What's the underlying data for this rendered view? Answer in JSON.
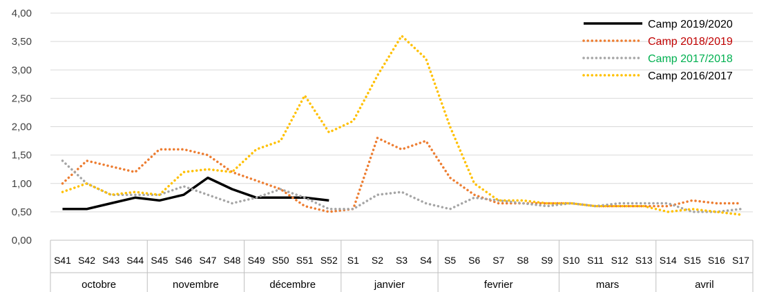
{
  "chart_data": {
    "type": "line",
    "categories": [
      "S41",
      "S42",
      "S43",
      "S44",
      "S45",
      "S46",
      "S47",
      "S48",
      "S49",
      "S50",
      "S51",
      "S52",
      "S1",
      "S2",
      "S3",
      "S4",
      "S5",
      "S6",
      "S7",
      "S8",
      "S9",
      "S10",
      "S11",
      "S12",
      "S13",
      "S14",
      "S15",
      "S16",
      "S17"
    ],
    "months": [
      {
        "label": "octobre",
        "span": 4
      },
      {
        "label": "novembre",
        "span": 4
      },
      {
        "label": "décembre",
        "span": 4
      },
      {
        "label": "janvier",
        "span": 4
      },
      {
        "label": "fevrier",
        "span": 5
      },
      {
        "label": "mars",
        "span": 4
      },
      {
        "label": "avril",
        "span": 4
      }
    ],
    "y_ticks": [
      "0,00",
      "0,50",
      "1,00",
      "1,50",
      "2,00",
      "2,50",
      "3,00",
      "3,50",
      "4,00"
    ],
    "ylim": [
      0,
      4
    ],
    "grid": true,
    "legend_position": "top-right",
    "series": [
      {
        "name": "Camp 2019/2020",
        "color": "#000000",
        "style": "solid",
        "values": [
          0.55,
          0.55,
          0.65,
          0.75,
          0.7,
          0.8,
          1.1,
          0.9,
          0.75,
          0.75,
          0.75,
          0.7,
          null,
          null,
          null,
          null,
          null,
          null,
          null,
          null,
          null,
          null,
          null,
          null,
          null,
          null,
          null,
          null,
          null
        ]
      },
      {
        "name": "Camp 2018/2019",
        "color": "#ED7D31",
        "label_color": "#C00000",
        "style": "dotted",
        "values": [
          1.0,
          1.4,
          1.3,
          1.2,
          1.6,
          1.6,
          1.5,
          1.2,
          1.05,
          0.9,
          0.6,
          0.5,
          0.55,
          1.8,
          1.6,
          1.75,
          1.1,
          0.8,
          0.65,
          0.65,
          0.65,
          0.65,
          0.6,
          0.6,
          0.6,
          0.6,
          0.7,
          0.65,
          0.65
        ]
      },
      {
        "name": "Camp 2017/2018",
        "color": "#A5A5A5",
        "label_color": "#00B050",
        "style": "dotted",
        "values": [
          1.4,
          1.0,
          0.8,
          0.8,
          0.8,
          0.95,
          0.8,
          0.65,
          0.75,
          0.9,
          0.75,
          0.55,
          0.55,
          0.8,
          0.85,
          0.65,
          0.55,
          0.75,
          0.7,
          0.65,
          0.6,
          0.65,
          0.6,
          0.65,
          0.65,
          0.65,
          0.5,
          0.5,
          0.55
        ]
      },
      {
        "name": "Camp 2016/2017",
        "color": "#FFC000",
        "style": "dotted",
        "values": [
          0.85,
          1.0,
          0.8,
          0.85,
          0.8,
          1.2,
          1.25,
          1.2,
          1.6,
          1.75,
          2.55,
          1.9,
          2.1,
          2.9,
          3.6,
          3.2,
          2.0,
          1.0,
          0.7,
          0.7,
          0.65,
          0.65,
          0.6,
          0.6,
          0.6,
          0.5,
          0.55,
          0.5,
          0.45
        ]
      }
    ]
  }
}
